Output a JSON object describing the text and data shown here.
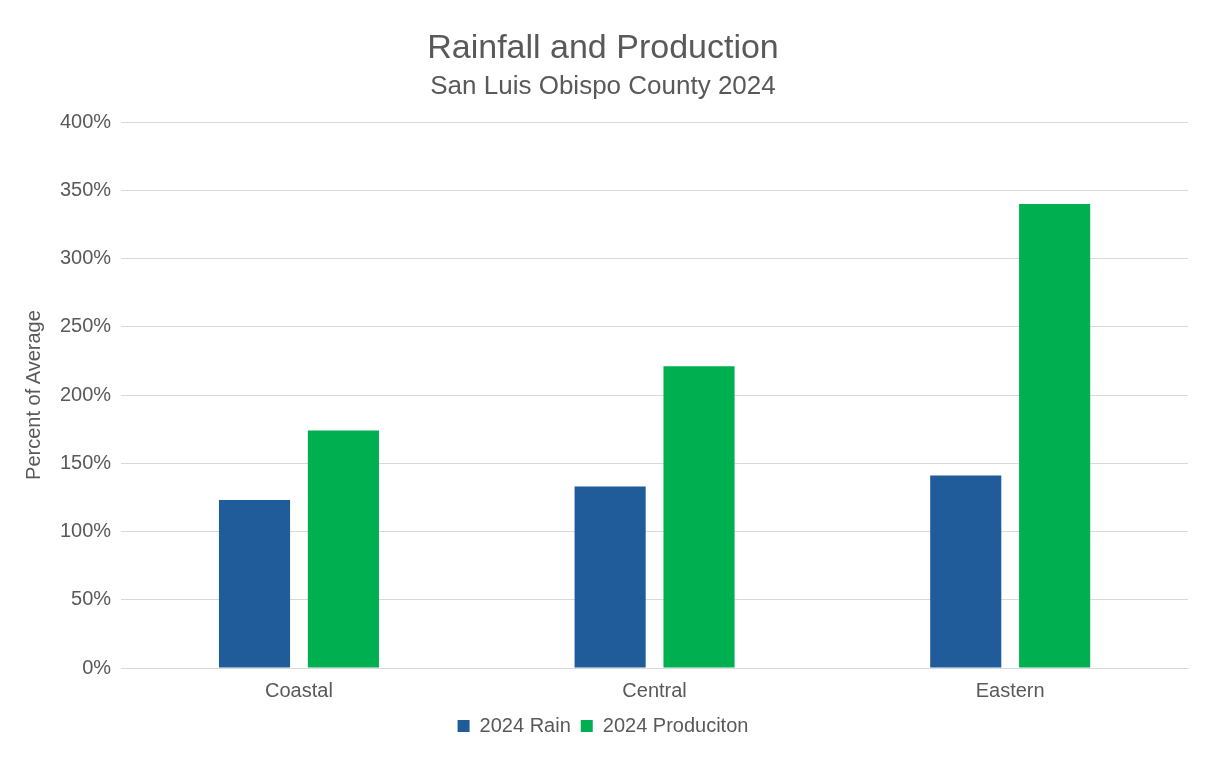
{
  "chart_data": {
    "type": "bar",
    "title": "Rainfall and Production",
    "subtitle": "San Luis Obispo County 2024",
    "ylabel": "Percent of Average",
    "categories": [
      "Coastal",
      "Central",
      "Eastern"
    ],
    "series": [
      {
        "name": "2024 Rain",
        "color": "#1f5c99",
        "values": [
          123,
          133,
          141
        ]
      },
      {
        "name": "2024 Produciton",
        "color": "#00b050",
        "values": [
          174,
          221,
          340
        ]
      }
    ],
    "ylim": [
      0,
      400
    ],
    "yticks": [
      {
        "value": 0,
        "label": "0%"
      },
      {
        "value": 50,
        "label": "50%"
      },
      {
        "value": 100,
        "label": "100%"
      },
      {
        "value": 150,
        "label": "150%"
      },
      {
        "value": 200,
        "label": "200%"
      },
      {
        "value": 250,
        "label": "250%"
      },
      {
        "value": 300,
        "label": "300%"
      },
      {
        "value": 350,
        "label": "350%"
      },
      {
        "value": 400,
        "label": "400%"
      }
    ],
    "grid": "y",
    "legend": "bottom"
  }
}
